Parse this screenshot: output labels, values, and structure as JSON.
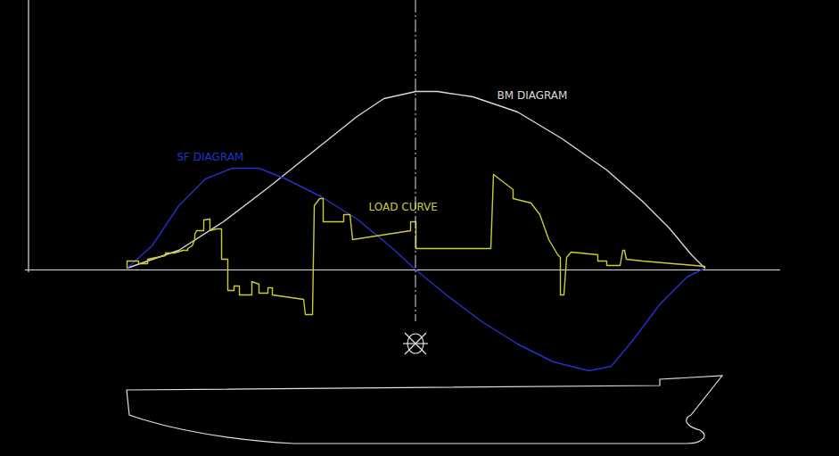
{
  "chart_data": {
    "type": "line",
    "xlim": [
      -114,
      733
    ],
    "ylim": [
      -130,
      302
    ],
    "tick_labels": false,
    "series": [
      {
        "name": "BM DIAGRAM",
        "color": "#d9d9d9",
        "x": [
          0,
          58,
          108,
          158,
          208,
          258,
          288,
          324,
          348,
          388,
          438,
          488,
          538,
          578,
          608,
          633,
          648
        ],
        "values": [
          2,
          22,
          54,
          92,
          132,
          172,
          192,
          200,
          200,
          194,
          177,
          147,
          112,
          77,
          47,
          17,
          2
        ]
      },
      {
        "name": "SF DIAGRAM",
        "color": "#2233cc",
        "x": [
          0,
          28,
          58,
          88,
          118,
          148,
          178,
          218,
          258,
          298,
          324,
          358,
          398,
          438,
          478,
          518,
          543,
          568,
          598,
          628,
          648
        ],
        "values": [
          2,
          27,
          72,
          102,
          114,
          114,
          102,
          82,
          57,
          24,
          0,
          -28,
          -58,
          -83,
          -103,
          -113,
          -108,
          -78,
          -38,
          -8,
          2
        ]
      },
      {
        "name": "LOAD CURVE",
        "color": "#cccc33",
        "x": [
          0,
          0,
          13,
          13,
          23,
          23,
          33,
          43,
          43,
          53,
          63,
          68,
          68,
          73,
          76,
          76,
          78,
          86,
          86,
          93,
          93,
          100,
          106,
          106,
          113,
          113,
          120,
          120,
          126,
          126,
          140,
          140,
          148,
          148,
          158,
          158,
          163,
          163,
          198,
          200,
          208,
          210,
          216,
          220,
          220,
          243,
          243,
          250,
          253,
          318,
          318,
          324,
          324,
          408,
          411,
          433,
          433,
          453,
          463,
          473,
          483,
          486,
          486,
          490,
          493,
          498,
          518,
          528,
          528,
          538,
          538,
          553,
          556,
          558,
          560,
          578,
          648,
          648
        ],
        "values": [
          2,
          10,
          10,
          7,
          7,
          12,
          14,
          16,
          19,
          19,
          22,
          22,
          24,
          27,
          34,
          40,
          44,
          44,
          56,
          57,
          44,
          46,
          46,
          12,
          12,
          -23,
          -23,
          -18,
          -18,
          -28,
          -28,
          -13,
          -16,
          -26,
          -26,
          -20,
          -20,
          -28,
          -33,
          -50,
          -50,
          72,
          80,
          80,
          54,
          54,
          62,
          62,
          34,
          44,
          54,
          54,
          24,
          24,
          107,
          90,
          80,
          75,
          62,
          34,
          17,
          14,
          -28,
          -28,
          14,
          20,
          18,
          17,
          10,
          10,
          5,
          5,
          22,
          22,
          12,
          10,
          4,
          2
        ]
      }
    ]
  }
}
